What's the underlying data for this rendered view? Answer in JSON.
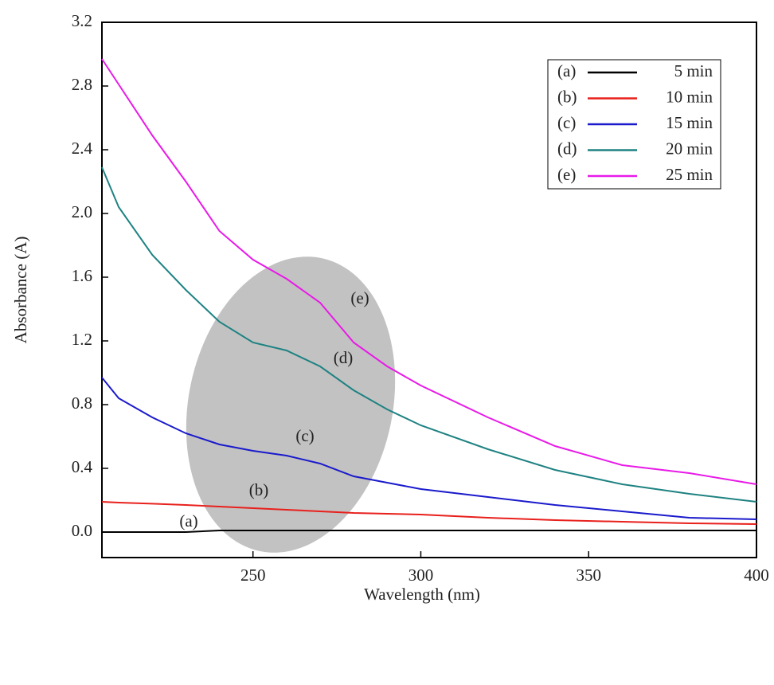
{
  "chart_data": {
    "type": "line",
    "x_label": "Wavelength (nm)",
    "y_label": "Absorbance (A)",
    "x": [
      205,
      210,
      220,
      230,
      240,
      250,
      260,
      270,
      280,
      290,
      300,
      320,
      340,
      360,
      380,
      400
    ],
    "series": [
      {
        "label": "(a)",
        "name": "5 min",
        "color": "#000000",
        "values": [
          0.0,
          0.0,
          0.0,
          0.0,
          0.01,
          0.01,
          0.01,
          0.01,
          0.01,
          0.01,
          0.01,
          0.01,
          0.01,
          0.01,
          0.01,
          0.01
        ]
      },
      {
        "label": "(b)",
        "name": "10 min",
        "color": "#e8201c",
        "values": [
          0.19,
          0.185,
          0.178,
          0.17,
          0.16,
          0.15,
          0.14,
          0.13,
          0.12,
          0.115,
          0.11,
          0.09,
          0.075,
          0.065,
          0.055,
          0.05
        ]
      },
      {
        "label": "(c)",
        "name": "15 min",
        "color": "#1a1acc",
        "values": [
          0.97,
          0.84,
          0.72,
          0.62,
          0.55,
          0.51,
          0.48,
          0.43,
          0.35,
          0.31,
          0.27,
          0.22,
          0.17,
          0.13,
          0.09,
          0.08
        ]
      },
      {
        "label": "(d)",
        "name": "20 min",
        "color": "#1f8282",
        "values": [
          2.29,
          2.04,
          1.74,
          1.52,
          1.32,
          1.19,
          1.14,
          1.04,
          0.89,
          0.77,
          0.67,
          0.52,
          0.39,
          0.3,
          0.24,
          0.19
        ]
      },
      {
        "label": "(e)",
        "name": "25 min",
        "color": "#e81ae8",
        "values": [
          2.97,
          2.81,
          2.49,
          2.2,
          1.89,
          1.71,
          1.59,
          1.44,
          1.19,
          1.04,
          0.92,
          0.72,
          0.54,
          0.42,
          0.37,
          0.3
        ]
      }
    ],
    "xlim": [
      205,
      400
    ],
    "xticks": [
      250,
      300,
      350,
      400
    ],
    "ylim": [
      -0.16,
      3.2
    ],
    "yticks": [
      {
        "value": 0,
        "label": "0.0"
      },
      0.4,
      0.8,
      1.2,
      1.6,
      {
        "value": 2,
        "label": "2.0"
      },
      2.4,
      2.8,
      3.2
    ],
    "legend": "upper right"
  }
}
